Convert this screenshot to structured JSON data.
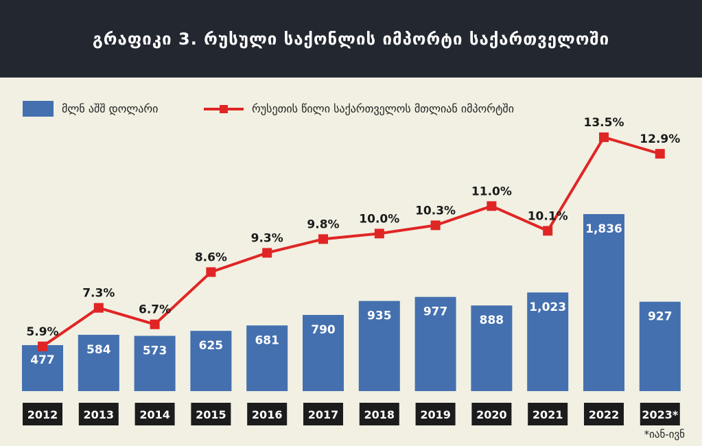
{
  "title": "გრაფიკი 3. რუსული საქონლის იმპორტი საქართველოში",
  "legend": {
    "bar_label": "მლნ აშშ დოლარი",
    "line_label": "რუსეთის წილი საქართველოს  მთლიან იმპორტში"
  },
  "footnote": "*იან-ივნ",
  "colors": {
    "header_bg": "#23272f",
    "page_bg": "#f1f0e3",
    "bar": "#4470af",
    "line": "#e02525",
    "year_label_bg": "#1c1c1c"
  },
  "chart_data": {
    "type": "bar",
    "categories": [
      "2012",
      "2013",
      "2014",
      "2015",
      "2016",
      "2017",
      "2018",
      "2019",
      "2020",
      "2021",
      "2022",
      "2023*"
    ],
    "series": [
      {
        "name": "მლნ აშშ დოლარი",
        "type": "bar",
        "values": [
          477,
          584,
          573,
          625,
          681,
          790,
          935,
          977,
          888,
          1023,
          1836,
          927
        ],
        "labels": [
          "477",
          "584",
          "573",
          "625",
          "681",
          "790",
          "935",
          "977",
          "888",
          "1,023",
          "1,836",
          "927"
        ]
      },
      {
        "name": "რუსეთის წილი საქართველოს  მთლიან იმპორტში",
        "type": "line",
        "values": [
          5.9,
          7.3,
          6.7,
          8.6,
          9.3,
          9.8,
          10.0,
          10.3,
          11.0,
          10.1,
          13.5,
          12.9
        ],
        "labels": [
          "5.9%",
          "7.3%",
          "6.7%",
          "8.6%",
          "9.3%",
          "9.8%",
          "10.0%",
          "10.3%",
          "11.0%",
          "10.1%",
          "13.5%",
          "12.9%"
        ]
      }
    ],
    "grid": false,
    "legend_position": "top-left"
  }
}
